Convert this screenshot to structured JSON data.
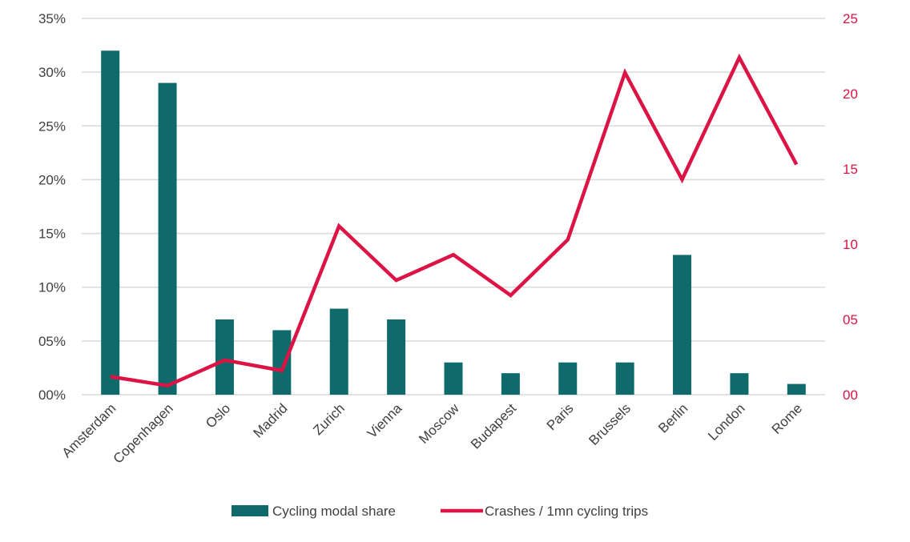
{
  "chart_data": {
    "type": "bar",
    "categories": [
      "Amsterdam",
      "Copenhagen",
      "Oslo",
      "Madrid",
      "Zurich",
      "Vienna",
      "Moscow",
      "Budapest",
      "Paris",
      "Brussels",
      "Berlin",
      "London",
      "Rome"
    ],
    "series": [
      {
        "name": "Cycling modal share",
        "type": "bar",
        "axis": "left",
        "color": "#0f6b6b",
        "values": [
          32,
          29,
          7,
          6,
          8,
          7,
          3,
          2,
          3,
          3,
          13,
          2,
          1
        ]
      },
      {
        "name": "Crashes / 1mn cycling trips",
        "type": "line",
        "axis": "right",
        "color": "#dc1445",
        "values": [
          1.2,
          0.6,
          2.3,
          1.6,
          11.2,
          7.6,
          9.3,
          6.6,
          10.3,
          21.4,
          14.3,
          22.4,
          15.3
        ]
      }
    ],
    "y_left": {
      "ylim": [
        0,
        35
      ],
      "ticks": [
        0,
        5,
        10,
        15,
        20,
        25,
        30,
        35
      ],
      "tick_labels": [
        "00%",
        "05%",
        "10%",
        "15%",
        "20%",
        "25%",
        "30%",
        "35%"
      ]
    },
    "y_right": {
      "ylim": [
        0,
        25
      ],
      "ticks": [
        0,
        5,
        10,
        15,
        20,
        25
      ],
      "tick_labels": [
        "00",
        "05",
        "10",
        "15",
        "20",
        "25"
      ],
      "color": "#dc1445"
    },
    "grid": true,
    "legend": "bottom-center",
    "title": "",
    "xlabel": "",
    "ylabel": ""
  }
}
